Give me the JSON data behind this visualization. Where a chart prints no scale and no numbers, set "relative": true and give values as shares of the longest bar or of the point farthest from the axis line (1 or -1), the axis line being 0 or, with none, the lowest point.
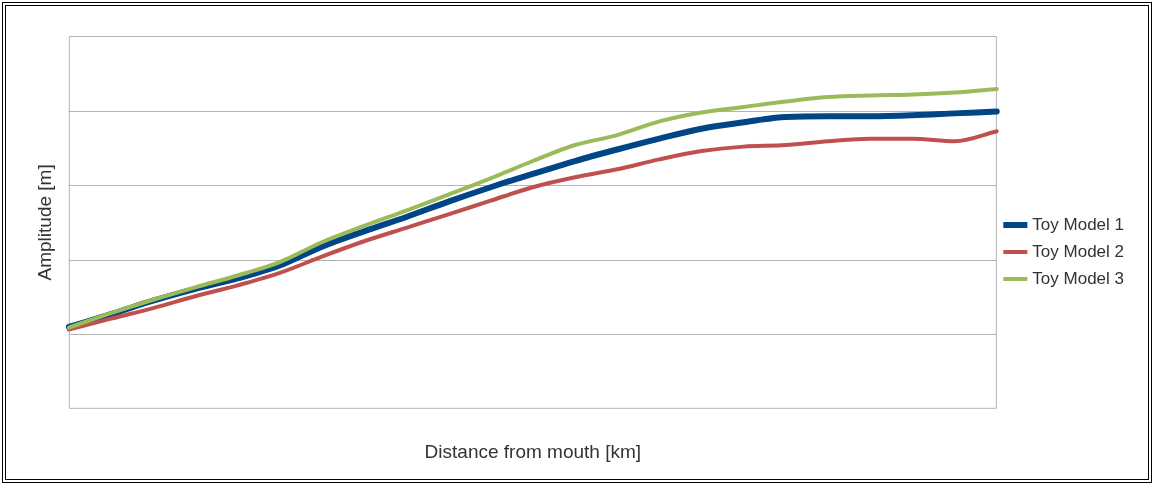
{
  "chart_data": {
    "type": "line",
    "relative": true,
    "xlabel": "Distance from mouth [km]",
    "ylabel": "Amplitude [m]",
    "grid": "y",
    "legend": "right",
    "marker": "none",
    "line_style": "solid",
    "categories": [
      null,
      null,
      null,
      null,
      null,
      null,
      null,
      null,
      null,
      null,
      null,
      null,
      null,
      null,
      null,
      null,
      null,
      null,
      null,
      null,
      null,
      null,
      null
    ],
    "series": [
      {
        "name": "Toy Model 1",
        "color": "#004586",
        "values": [
          0.256,
          0.296,
          0.338,
          0.375,
          0.408,
          0.448,
          0.507,
          0.555,
          0.6,
          0.648,
          0.693,
          0.735,
          0.775,
          0.811,
          0.845,
          0.876,
          0.896,
          0.913,
          0.915,
          0.915,
          0.918,
          0.924,
          0.93
        ]
      },
      {
        "name": "Toy Model 2",
        "color": "#c0504d",
        "values": [
          0.248,
          0.282,
          0.315,
          0.352,
          0.386,
          0.425,
          0.476,
          0.524,
          0.566,
          0.608,
          0.651,
          0.693,
          0.724,
          0.749,
          0.78,
          0.806,
          0.82,
          0.825,
          0.837,
          0.845,
          0.845,
          0.837,
          0.868
        ]
      },
      {
        "name": "Toy Model 3",
        "color": "#9bbb59",
        "values": [
          0.254,
          0.299,
          0.341,
          0.38,
          0.417,
          0.459,
          0.521,
          0.572,
          0.62,
          0.67,
          0.721,
          0.775,
          0.825,
          0.856,
          0.899,
          0.927,
          0.944,
          0.961,
          0.975,
          0.98,
          0.983,
          0.989,
          1
        ]
      }
    ]
  }
}
